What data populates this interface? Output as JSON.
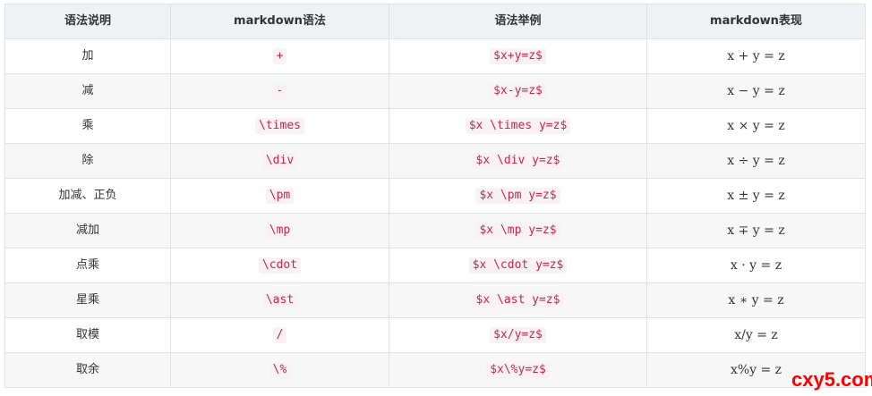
{
  "headers": [
    "语法说明",
    "markdown语法",
    "语法举例",
    "markdown表现"
  ],
  "rows": [
    {
      "desc": "加",
      "syntax": "+",
      "example": "$x+y=z$",
      "render": "x + y = z"
    },
    {
      "desc": "减",
      "syntax": "-",
      "example": "$x-y=z$",
      "render": "x − y = z"
    },
    {
      "desc": "乘",
      "syntax": "\\times",
      "example": "$x \\times y=z$",
      "render": "x × y = z"
    },
    {
      "desc": "除",
      "syntax": "\\div",
      "example": "$x \\div y=z$",
      "render": "x ÷ y = z"
    },
    {
      "desc": "加减、正负",
      "syntax": "\\pm",
      "example": "$x \\pm y=z$",
      "render": "x ± y = z"
    },
    {
      "desc": "减加",
      "syntax": "\\mp",
      "example": "$x \\mp y=z$",
      "render": "x ∓ y = z"
    },
    {
      "desc": "点乘",
      "syntax": "\\cdot",
      "example": "$x \\cdot y=z$",
      "render": "x · y = z"
    },
    {
      "desc": "星乘",
      "syntax": "\\ast",
      "example": "$x \\ast y=z$",
      "render": "x ∗ y = z"
    },
    {
      "desc": "取模",
      "syntax": "/",
      "example": "$x/y=z$",
      "render": "x/y = z"
    },
    {
      "desc": "取余",
      "syntax": "\\%",
      "example": "$x\\%y=z$",
      "render": "x%y = z"
    }
  ],
  "watermark": "cxy5.com"
}
